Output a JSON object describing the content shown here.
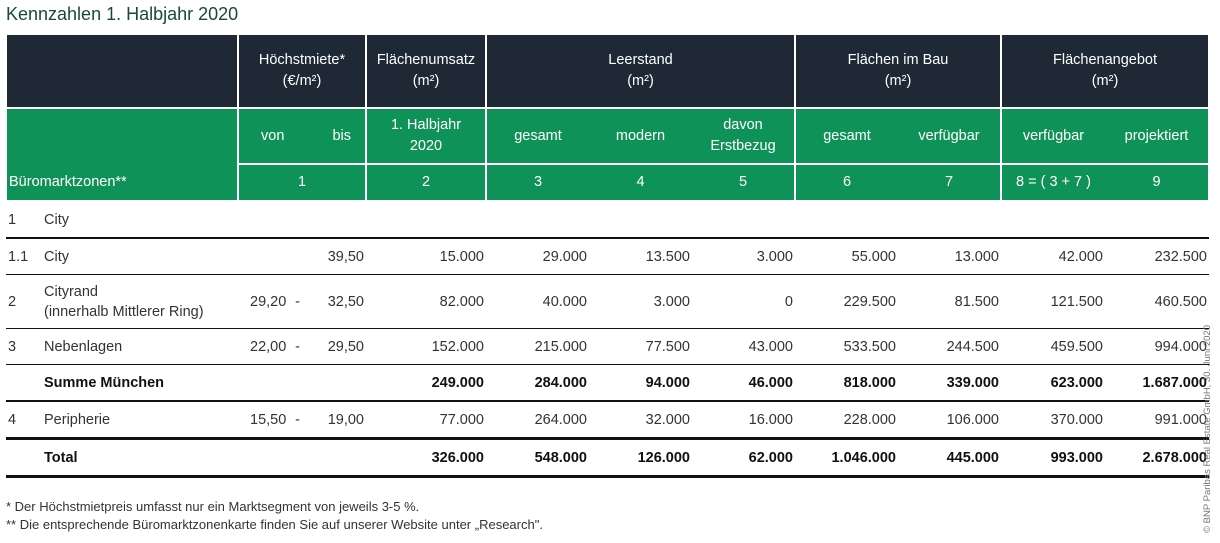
{
  "title": "Kennzahlen 1. Halbjahr 2020",
  "colors": {
    "header_dark": "#1e2935",
    "header_green": "#0f9257"
  },
  "header": {
    "groups": [
      {
        "label": "Höchstmiete*",
        "unit": "(€/m²)"
      },
      {
        "label": "Flächenumsatz",
        "unit": "(m²)"
      },
      {
        "label": "Leerstand",
        "unit": "(m²)"
      },
      {
        "label": "Flächen im Bau",
        "unit": "(m²)"
      },
      {
        "label": "Flächenangebot",
        "unit": "(m²)"
      }
    ],
    "zone_label": "Büromarktzonen**",
    "sub": [
      "von",
      "bis",
      "1. Halbjahr",
      "2020",
      "gesamt",
      "modern",
      "davon",
      "Erstbezug",
      "gesamt",
      "verfügbar",
      "verfügbar",
      "projektiert"
    ],
    "numbers": [
      "1",
      "2",
      "3",
      "4",
      "5",
      "6",
      "7",
      "8 = ( 3 + 7 )",
      "9"
    ]
  },
  "rows": [
    {
      "type": "section",
      "num": "1",
      "name": "City",
      "von": "",
      "bis": "",
      "values": [
        "",
        "",
        "",
        "",
        "",
        "",
        "",
        ""
      ]
    },
    {
      "type": "normal",
      "num": "1.1",
      "name": "City",
      "von": "",
      "bis": "39,50",
      "values": [
        "15.000",
        "29.000",
        "13.500",
        "3.000",
        "55.000",
        "13.000",
        "42.000",
        "232.500"
      ]
    },
    {
      "type": "tall",
      "num": "2",
      "name": "Cityrand",
      "name2": "(innerhalb Mittlerer Ring)",
      "von": "29,20",
      "bis": "32,50",
      "values": [
        "82.000",
        "40.000",
        "3.000",
        "0",
        "229.500",
        "81.500",
        "121.500",
        "460.500"
      ]
    },
    {
      "type": "normal",
      "num": "3",
      "name": "Nebenlagen",
      "von": "22,00",
      "bis": "29,50",
      "values": [
        "152.000",
        "215.000",
        "77.500",
        "43.000",
        "533.500",
        "244.500",
        "459.500",
        "994.000"
      ]
    },
    {
      "type": "sum",
      "num": "",
      "name": "Summe München",
      "von": "",
      "bis": "",
      "values": [
        "249.000",
        "284.000",
        "94.000",
        "46.000",
        "818.000",
        "339.000",
        "623.000",
        "1.687.000"
      ]
    },
    {
      "type": "normal",
      "num": "4",
      "name": "Peripherie",
      "von": "15,50",
      "bis": "19,00",
      "values": [
        "77.000",
        "264.000",
        "32.000",
        "16.000",
        "228.000",
        "106.000",
        "370.000",
        "991.000"
      ]
    },
    {
      "type": "total",
      "num": "",
      "name": "Total",
      "von": "",
      "bis": "",
      "values": [
        "326.000",
        "548.000",
        "126.000",
        "62.000",
        "1.046.000",
        "445.000",
        "993.000",
        "2.678.000"
      ]
    }
  ],
  "footnotes": [
    "*   Der Höchstmietpreis umfasst nur ein Marktsegment von jeweils 3-5 %.",
    "** Die entsprechende Büromarktzonenkarte finden Sie auf unserer Website unter „Research\"."
  ],
  "copyright": "© BNP Paribas Real Estate GmbH, 30. Juni 2020"
}
